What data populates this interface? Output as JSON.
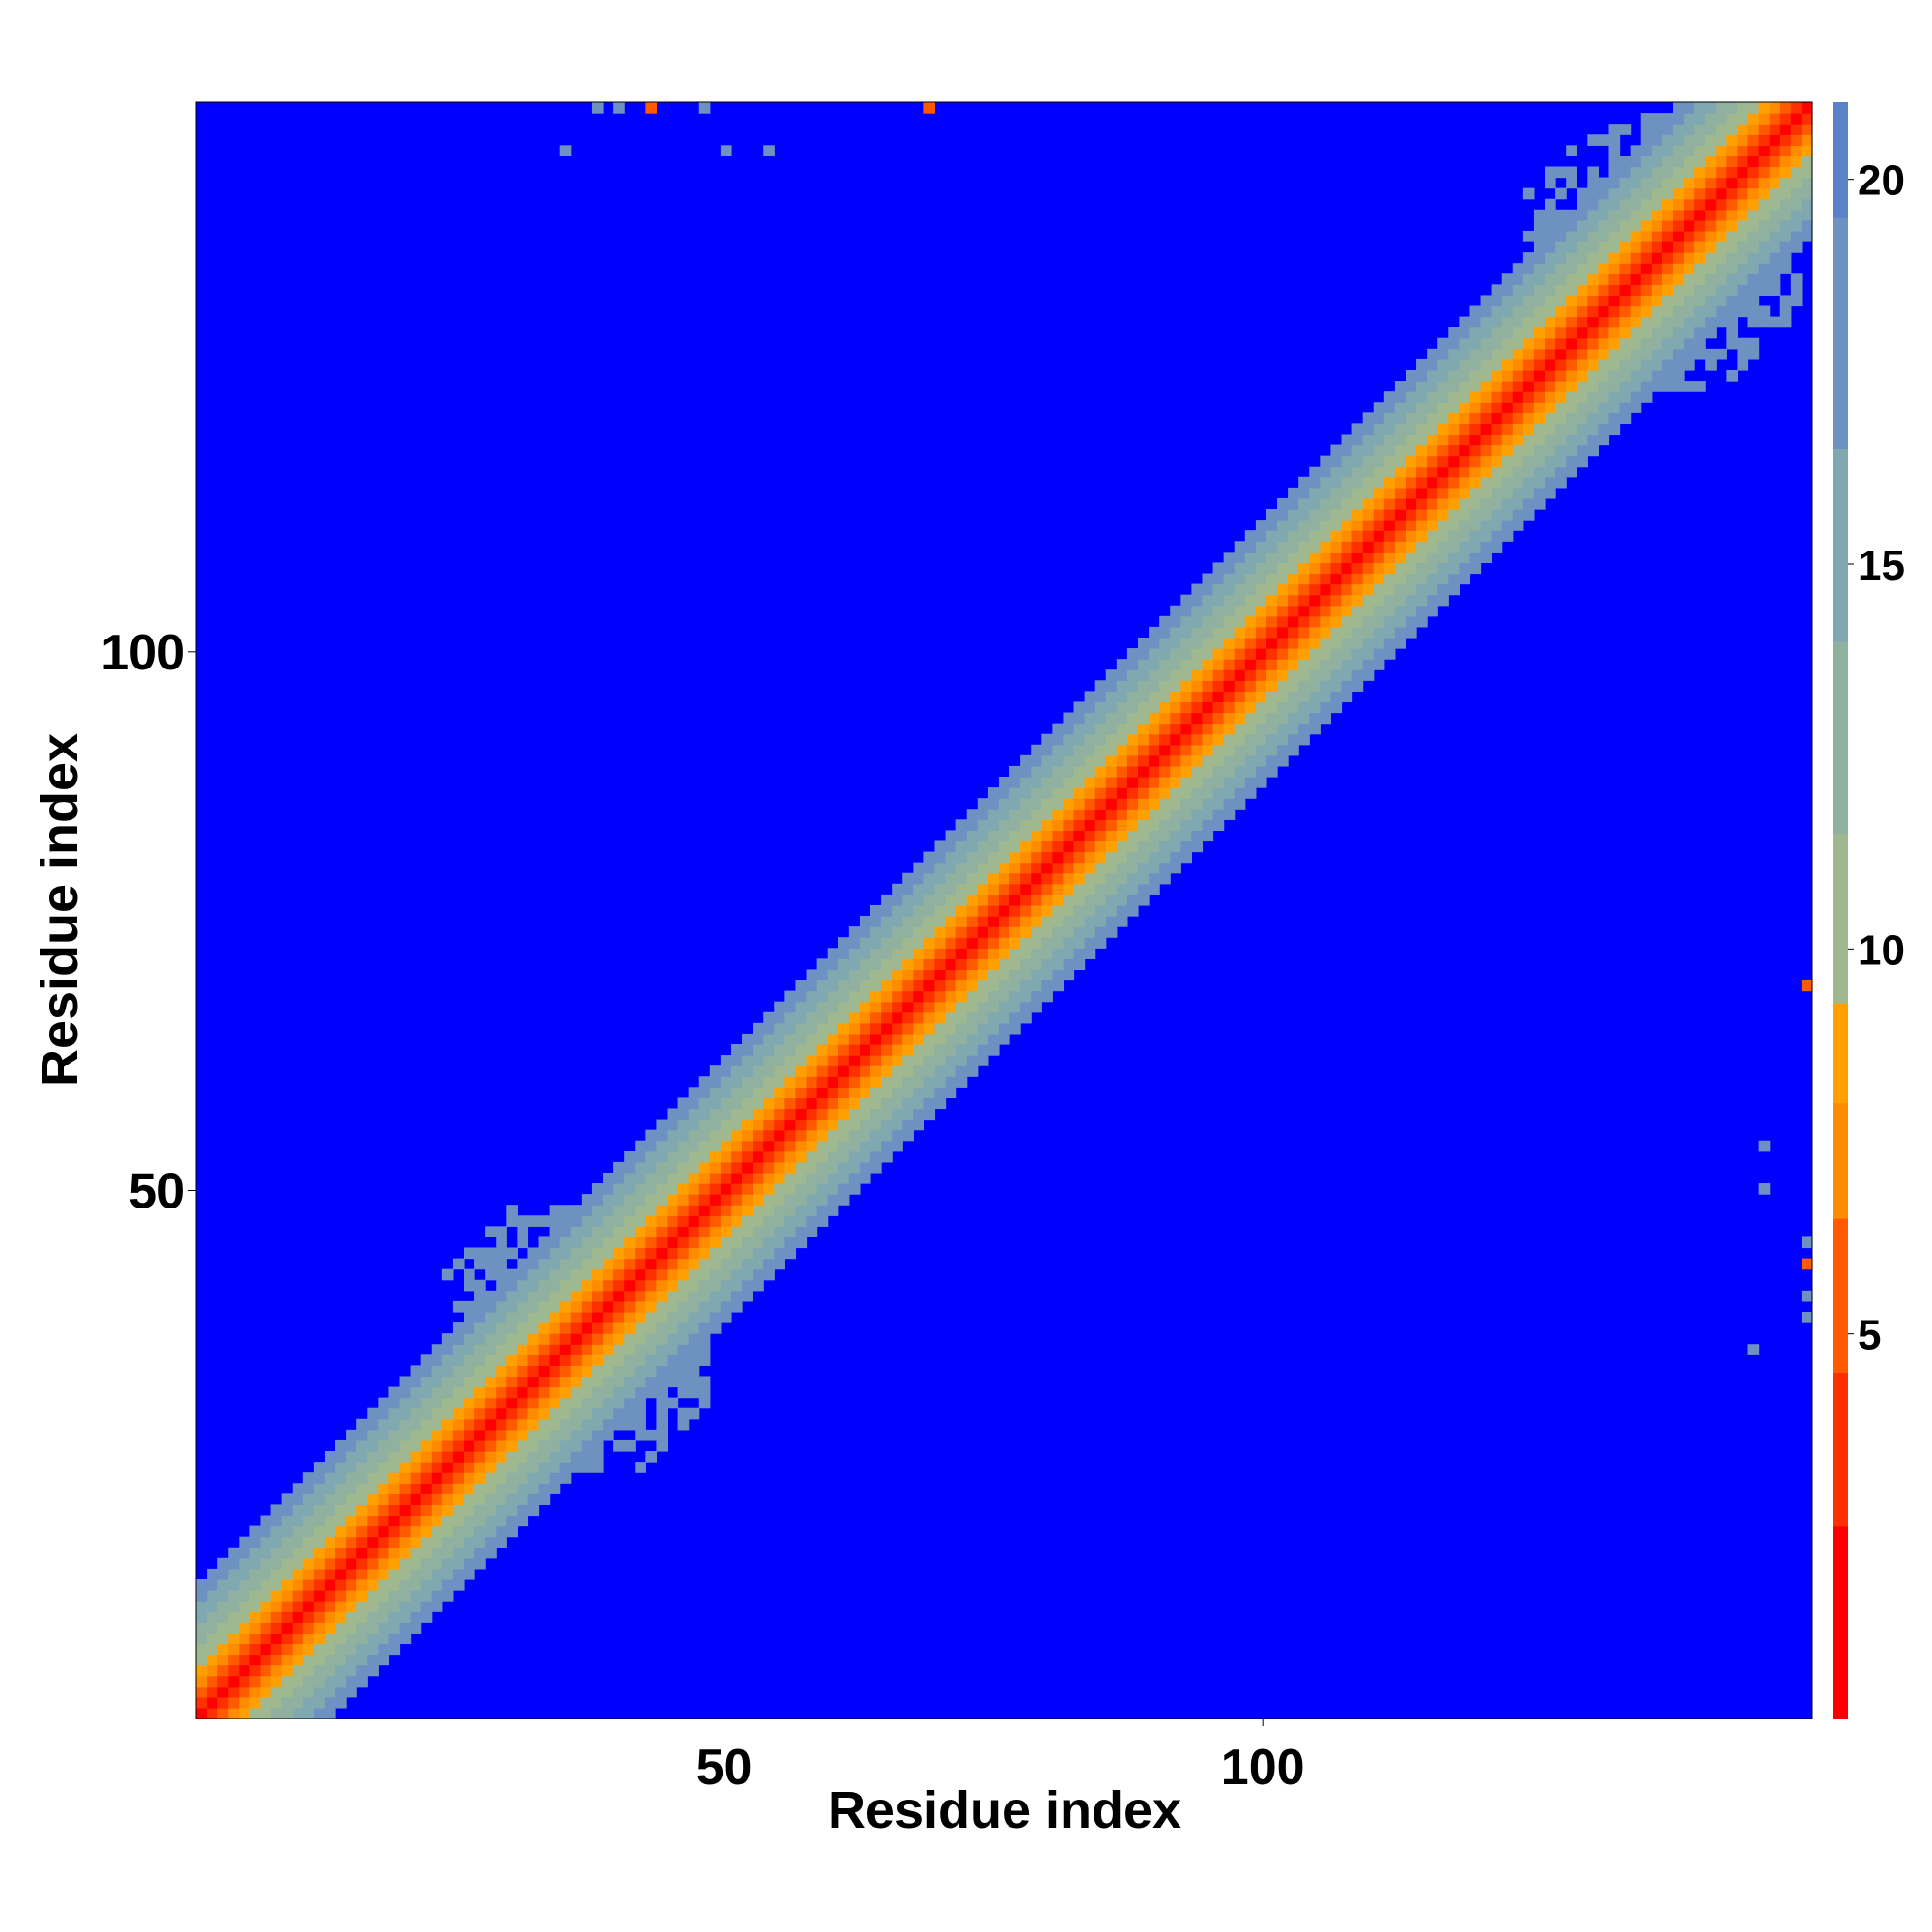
{
  "chart_data": {
    "type": "heatmap",
    "title": "",
    "xlabel": "Residue index",
    "ylabel": "Residue index",
    "n_residues": 151,
    "xlim": [
      1,
      151
    ],
    "ylim": [
      1,
      151
    ],
    "x_ticks": [
      50,
      100
    ],
    "y_ticks": [
      50,
      100
    ],
    "colorbar": {
      "ticks": [
        5,
        10,
        15,
        20
      ],
      "range": [
        0,
        21
      ],
      "placement": "right",
      "colors": [
        "#ff0000",
        "#ff3000",
        "#ff5a00",
        "#ff8c00",
        "#ffa000",
        "#a0b890",
        "#90b0a0",
        "#80a8b0",
        "#6d92c2",
        "#5b82c8",
        "#0000ff"
      ],
      "stops": [
        0,
        2.5,
        4.5,
        6.5,
        8,
        9.3,
        11.5,
        14,
        16.5,
        19.5,
        21
      ]
    },
    "band": {
      "description_values": "distance grows with |i - j|; diagonal 0, red ~1-4 within |i-j|<=2, orange ~5-7 at |i-j|=3-4, green/blue-grey 8-19 at |i-j|=5-12, blue 21 beyond",
      "cutoff": 21
    },
    "patches": [
      {
        "i": [
          24,
          44
        ],
        "j": [
          36,
          48
        ],
        "value": 18
      },
      {
        "i": [
          36,
          48
        ],
        "j": [
          24,
          44
        ],
        "value": 18
      },
      {
        "i": [
          125,
          150
        ],
        "j": [
          133,
          150
        ],
        "value": 18
      },
      {
        "i": [
          133,
          150
        ],
        "j": [
          125,
          150
        ],
        "value": 18
      }
    ],
    "isolated_cells": [
      {
        "x": 43,
        "y": 151,
        "value": 6
      },
      {
        "x": 69,
        "y": 151,
        "value": 6
      },
      {
        "x": 151,
        "y": 69,
        "value": 6
      },
      {
        "x": 151,
        "y": 43,
        "value": 6
      },
      {
        "x": 38,
        "y": 151,
        "value": 18
      },
      {
        "x": 40,
        "y": 151,
        "value": 18
      },
      {
        "x": 48,
        "y": 151,
        "value": 18
      },
      {
        "x": 35,
        "y": 147,
        "value": 18
      },
      {
        "x": 50,
        "y": 147,
        "value": 18
      },
      {
        "x": 54,
        "y": 147,
        "value": 18
      },
      {
        "x": 147,
        "y": 54,
        "value": 18
      },
      {
        "x": 147,
        "y": 50,
        "value": 18
      },
      {
        "x": 151,
        "y": 38,
        "value": 18
      },
      {
        "x": 151,
        "y": 40,
        "value": 18
      },
      {
        "x": 151,
        "y": 45,
        "value": 18
      },
      {
        "x": 146,
        "y": 35,
        "value": 18
      }
    ]
  }
}
